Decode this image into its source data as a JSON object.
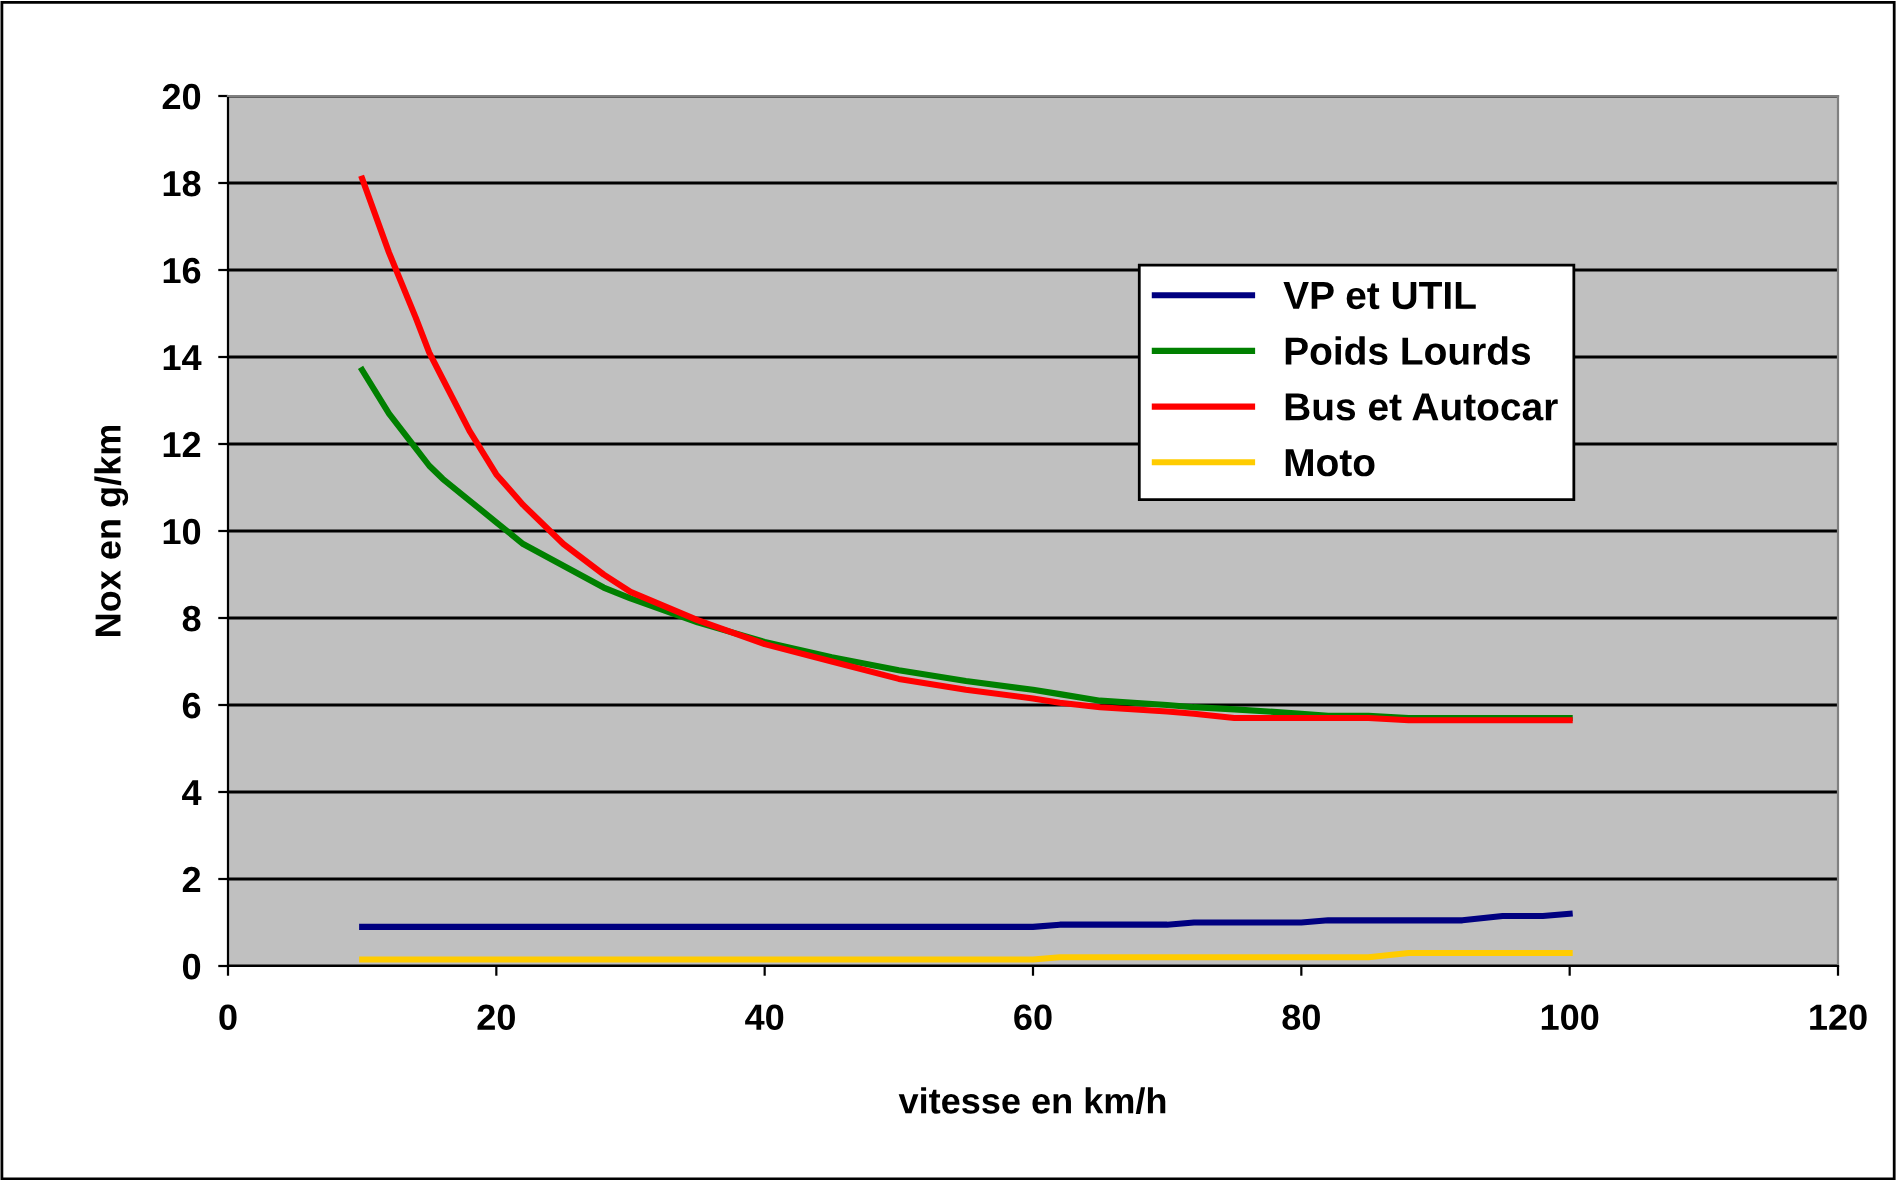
{
  "chart_data": {
    "type": "line",
    "xlabel": "vitesse en km/h",
    "ylabel": "Nox en g/km",
    "x": [
      10,
      12,
      14,
      15,
      16,
      18,
      20,
      22,
      25,
      28,
      30,
      35,
      40,
      45,
      50,
      55,
      60,
      62,
      65,
      70,
      72,
      75,
      80,
      82,
      85,
      88,
      90,
      92,
      95,
      98,
      100
    ],
    "series": [
      {
        "name": "VP et UTIL",
        "color": "#000080",
        "values": [
          0.9,
          0.9,
          0.9,
          0.9,
          0.9,
          0.9,
          0.9,
          0.9,
          0.9,
          0.9,
          0.9,
          0.9,
          0.9,
          0.9,
          0.9,
          0.9,
          0.9,
          0.95,
          0.95,
          0.95,
          1.0,
          1.0,
          1.0,
          1.05,
          1.05,
          1.05,
          1.05,
          1.05,
          1.15,
          1.15,
          1.2
        ]
      },
      {
        "name": "Poids Lourds",
        "color": "#008000",
        "values": [
          13.7,
          12.7,
          11.9,
          11.5,
          11.2,
          10.7,
          10.2,
          9.7,
          9.2,
          8.7,
          8.45,
          7.9,
          7.45,
          7.1,
          6.8,
          6.55,
          6.35,
          6.25,
          6.1,
          6.0,
          5.95,
          5.9,
          5.8,
          5.75,
          5.75,
          5.7,
          5.7,
          5.7,
          5.7,
          5.7,
          5.7
        ]
      },
      {
        "name": "Bus et Autocar",
        "color": "#ff0000",
        "values": [
          18.1,
          16.4,
          14.9,
          14.1,
          13.5,
          12.3,
          11.3,
          10.6,
          9.7,
          9.0,
          8.6,
          7.95,
          7.4,
          7.0,
          6.6,
          6.35,
          6.15,
          6.05,
          5.95,
          5.85,
          5.8,
          5.7,
          5.7,
          5.7,
          5.7,
          5.65,
          5.65,
          5.65,
          5.65,
          5.65,
          5.65
        ]
      },
      {
        "name": "Moto",
        "color": "#ffcc00",
        "values": [
          0.15,
          0.15,
          0.15,
          0.15,
          0.15,
          0.15,
          0.15,
          0.15,
          0.15,
          0.15,
          0.15,
          0.15,
          0.15,
          0.15,
          0.15,
          0.15,
          0.15,
          0.2,
          0.2,
          0.2,
          0.2,
          0.2,
          0.2,
          0.2,
          0.2,
          0.3,
          0.3,
          0.3,
          0.3,
          0.3,
          0.3
        ]
      }
    ],
    "xlim": [
      0,
      120
    ],
    "xticks": [
      0,
      20,
      40,
      60,
      80,
      100,
      120
    ],
    "ylim": [
      0,
      20
    ],
    "yticks": [
      0,
      2,
      4,
      6,
      8,
      10,
      12,
      14,
      16,
      18,
      20
    ],
    "grid": "y",
    "legend": "top right",
    "marker": "none",
    "line_style": "solid"
  }
}
